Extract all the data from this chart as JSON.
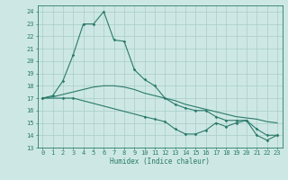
{
  "xlabel": "Humidex (Indice chaleur)",
  "xlim": [
    -0.5,
    23.5
  ],
  "ylim": [
    13,
    24.5
  ],
  "yticks": [
    13,
    14,
    15,
    16,
    17,
    18,
    19,
    20,
    21,
    22,
    23,
    24
  ],
  "xticks": [
    0,
    1,
    2,
    3,
    4,
    5,
    6,
    7,
    8,
    9,
    10,
    11,
    12,
    13,
    14,
    15,
    16,
    17,
    18,
    19,
    20,
    21,
    22,
    23
  ],
  "bg_color": "#cde8e4",
  "grid_color": "#a8ccca",
  "line_color": "#2a7a6a",
  "line1_x": [
    0,
    1,
    2,
    3,
    4,
    5,
    6,
    7,
    8,
    9,
    10,
    11,
    12,
    13,
    14,
    15,
    16,
    17,
    18,
    19,
    20,
    21,
    22,
    23
  ],
  "line1_y": [
    17.0,
    17.2,
    18.4,
    20.5,
    23.0,
    23.0,
    24.0,
    21.7,
    21.6,
    19.3,
    18.5,
    18.0,
    17.0,
    16.5,
    16.2,
    16.0,
    16.0,
    15.5,
    15.2,
    15.2,
    15.2,
    14.5,
    14.0,
    14.0
  ],
  "line2_x": [
    0,
    1,
    2,
    3,
    4,
    5,
    6,
    7,
    8,
    9,
    10,
    11,
    12,
    13,
    14,
    15,
    16,
    17,
    18,
    19,
    20,
    21,
    22,
    23
  ],
  "line2_y": [
    17.0,
    17.1,
    17.3,
    17.5,
    17.7,
    17.9,
    18.0,
    18.0,
    17.9,
    17.7,
    17.4,
    17.2,
    17.0,
    16.8,
    16.5,
    16.3,
    16.1,
    15.9,
    15.7,
    15.5,
    15.4,
    15.3,
    15.1,
    15.0
  ],
  "line3_x": [
    0,
    2,
    3,
    10,
    11,
    12,
    13,
    14,
    15,
    16,
    17,
    18,
    19,
    20,
    21,
    22,
    23
  ],
  "line3_y": [
    17.0,
    17.0,
    17.0,
    15.5,
    15.3,
    15.1,
    14.5,
    14.1,
    14.1,
    14.4,
    15.0,
    14.7,
    15.0,
    15.2,
    14.0,
    13.6,
    14.0
  ]
}
